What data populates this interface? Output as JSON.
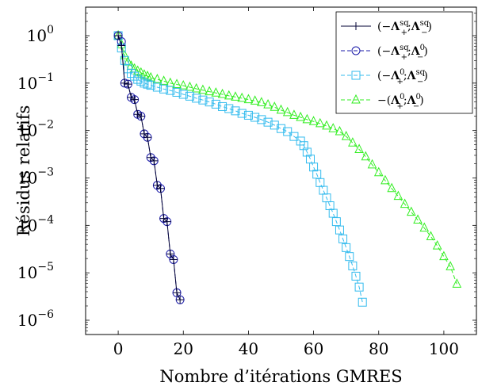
{
  "chart_data": {
    "type": "line",
    "xlabel": "Nombre d’itérations GMRES",
    "ylabel": "Résidus relatifs",
    "xlim": [
      -10,
      110
    ],
    "ylim": [
      5e-07,
      4
    ],
    "yscale": "log",
    "grid": false,
    "legend_position": "top-right",
    "x_ticks": [
      0,
      20,
      40,
      60,
      80,
      100
    ],
    "y_ticks": [
      {
        "value": 1,
        "base": "10",
        "exp": "0"
      },
      {
        "value": 0.1,
        "base": "10",
        "exp": "−1"
      },
      {
        "value": 0.01,
        "base": "10",
        "exp": "−2"
      },
      {
        "value": 0.001,
        "base": "10",
        "exp": "−3"
      },
      {
        "value": 0.0001,
        "base": "10",
        "exp": "−4"
      },
      {
        "value": 1e-05,
        "base": "10",
        "exp": "−5"
      },
      {
        "value": 1e-06,
        "base": "10",
        "exp": "−6"
      }
    ],
    "series": [
      {
        "name": "(−Λ+sq;Λ−sq)",
        "legend": [
          {
            "t": "(−"
          },
          {
            "t": "Λ",
            "bold": true
          },
          {
            "t": "sq",
            "sup": true
          },
          {
            "t": "+",
            "sub": true
          },
          {
            "t": ";"
          },
          {
            "t": "Λ",
            "bold": true
          },
          {
            "t": "sq",
            "sup": true
          },
          {
            "t": "−",
            "sub": true
          },
          {
            "t": ")"
          }
        ],
        "color": "#000033",
        "marker": "plus",
        "dash": "solid",
        "x": [
          0,
          1,
          2,
          3,
          4,
          5,
          6,
          7,
          8,
          9,
          10,
          11,
          12,
          13,
          14,
          15,
          16,
          17,
          18,
          19
        ],
        "y": [
          1,
          0.62,
          0.1,
          0.095,
          0.05,
          0.045,
          0.022,
          0.02,
          0.0085,
          0.0072,
          0.0027,
          0.0023,
          0.0007,
          0.0006,
          0.00014,
          0.00012,
          2.5e-05,
          1.9e-05,
          3.8e-06,
          2.7e-06
        ]
      },
      {
        "name": "(−Λ+sq;Λ−0)",
        "legend": [
          {
            "t": "(−"
          },
          {
            "t": "Λ",
            "bold": true
          },
          {
            "t": "sq",
            "sup": true
          },
          {
            "t": "+",
            "sub": true
          },
          {
            "t": ";"
          },
          {
            "t": "Λ",
            "bold": true
          },
          {
            "t": "0",
            "sup": true
          },
          {
            "t": "−",
            "sub": true
          },
          {
            "t": ")"
          }
        ],
        "color": "#1a1aa8",
        "marker": "circle",
        "dash": "dashed",
        "x": [
          0,
          1,
          2,
          3,
          4,
          5,
          6,
          7,
          8,
          9,
          10,
          11,
          12,
          13,
          14,
          15,
          16,
          17,
          18,
          19
        ],
        "y": [
          1,
          0.75,
          0.1,
          0.095,
          0.05,
          0.045,
          0.022,
          0.02,
          0.0085,
          0.0072,
          0.0027,
          0.0023,
          0.0007,
          0.0006,
          0.00014,
          0.00012,
          2.5e-05,
          1.9e-05,
          3.8e-06,
          2.7e-06
        ]
      },
      {
        "name": "(−Λ+0;Λ−sq)",
        "legend": [
          {
            "t": "(−"
          },
          {
            "t": "Λ",
            "bold": true
          },
          {
            "t": "0",
            "sup": true
          },
          {
            "t": "+",
            "sub": true
          },
          {
            "t": ";"
          },
          {
            "t": "Λ",
            "bold": true
          },
          {
            "t": "sq",
            "sup": true
          },
          {
            "t": "−",
            "sub": true
          },
          {
            "t": ")"
          }
        ],
        "color": "#33bbee",
        "marker": "square",
        "dash": "dashed",
        "x": [
          0,
          1,
          2,
          3,
          4,
          5,
          6,
          7,
          8,
          9,
          10,
          12,
          14,
          16,
          18,
          20,
          22,
          24,
          26,
          28,
          30,
          32,
          34,
          36,
          38,
          40,
          42,
          44,
          46,
          48,
          50,
          52,
          54,
          56,
          57,
          58,
          59,
          60,
          61,
          62,
          63,
          64,
          65,
          66,
          67,
          68,
          69,
          70,
          71,
          72,
          73,
          74,
          75
        ],
        "y": [
          1,
          0.55,
          0.3,
          0.2,
          0.16,
          0.14,
          0.12,
          0.11,
          0.1,
          0.095,
          0.09,
          0.082,
          0.075,
          0.07,
          0.064,
          0.058,
          0.053,
          0.048,
          0.044,
          0.04,
          0.036,
          0.032,
          0.029,
          0.026,
          0.023,
          0.021,
          0.019,
          0.017,
          0.015,
          0.013,
          0.011,
          0.0095,
          0.0075,
          0.006,
          0.0048,
          0.0035,
          0.0025,
          0.0017,
          0.0012,
          0.0008,
          0.00055,
          0.00038,
          0.00026,
          0.00018,
          0.00012,
          8e-05,
          5.2e-05,
          3.4e-05,
          2.2e-05,
          1.4e-05,
          8.5e-06,
          5e-06,
          2.4e-06
        ]
      },
      {
        "name": "−(Λ+0;Λ−0)",
        "legend": [
          {
            "t": "−("
          },
          {
            "t": "Λ",
            "bold": true
          },
          {
            "t": "0",
            "sup": true
          },
          {
            "t": "+",
            "sub": true
          },
          {
            "t": ";"
          },
          {
            "t": "Λ",
            "bold": true
          },
          {
            "t": "0",
            "sup": true
          },
          {
            "t": "−",
            "sub": true
          },
          {
            "t": ")"
          }
        ],
        "color": "#33ee22",
        "marker": "triangle",
        "dash": "dashed",
        "x": [
          0,
          1,
          2,
          3,
          4,
          5,
          6,
          7,
          8,
          9,
          10,
          12,
          14,
          16,
          18,
          20,
          22,
          24,
          26,
          28,
          30,
          32,
          34,
          36,
          38,
          40,
          42,
          44,
          46,
          48,
          50,
          52,
          54,
          56,
          58,
          60,
          62,
          64,
          66,
          68,
          70,
          72,
          74,
          76,
          78,
          80,
          82,
          84,
          86,
          88,
          90,
          92,
          94,
          96,
          98,
          100,
          102,
          104
        ],
        "y": [
          1,
          0.65,
          0.38,
          0.28,
          0.23,
          0.2,
          0.18,
          0.165,
          0.15,
          0.14,
          0.13,
          0.12,
          0.11,
          0.1,
          0.094,
          0.088,
          0.082,
          0.076,
          0.071,
          0.066,
          0.062,
          0.058,
          0.054,
          0.051,
          0.048,
          0.045,
          0.042,
          0.039,
          0.035,
          0.031,
          0.027,
          0.024,
          0.021,
          0.019,
          0.017,
          0.0155,
          0.014,
          0.0125,
          0.011,
          0.0095,
          0.0075,
          0.0055,
          0.004,
          0.0028,
          0.0019,
          0.0013,
          0.00088,
          0.0006,
          0.00041,
          0.00028,
          0.00019,
          0.00013,
          8.8e-05,
          5.8e-05,
          3.7e-05,
          2.2e-05,
          1.35e-05,
          5.8e-06
        ]
      }
    ]
  }
}
